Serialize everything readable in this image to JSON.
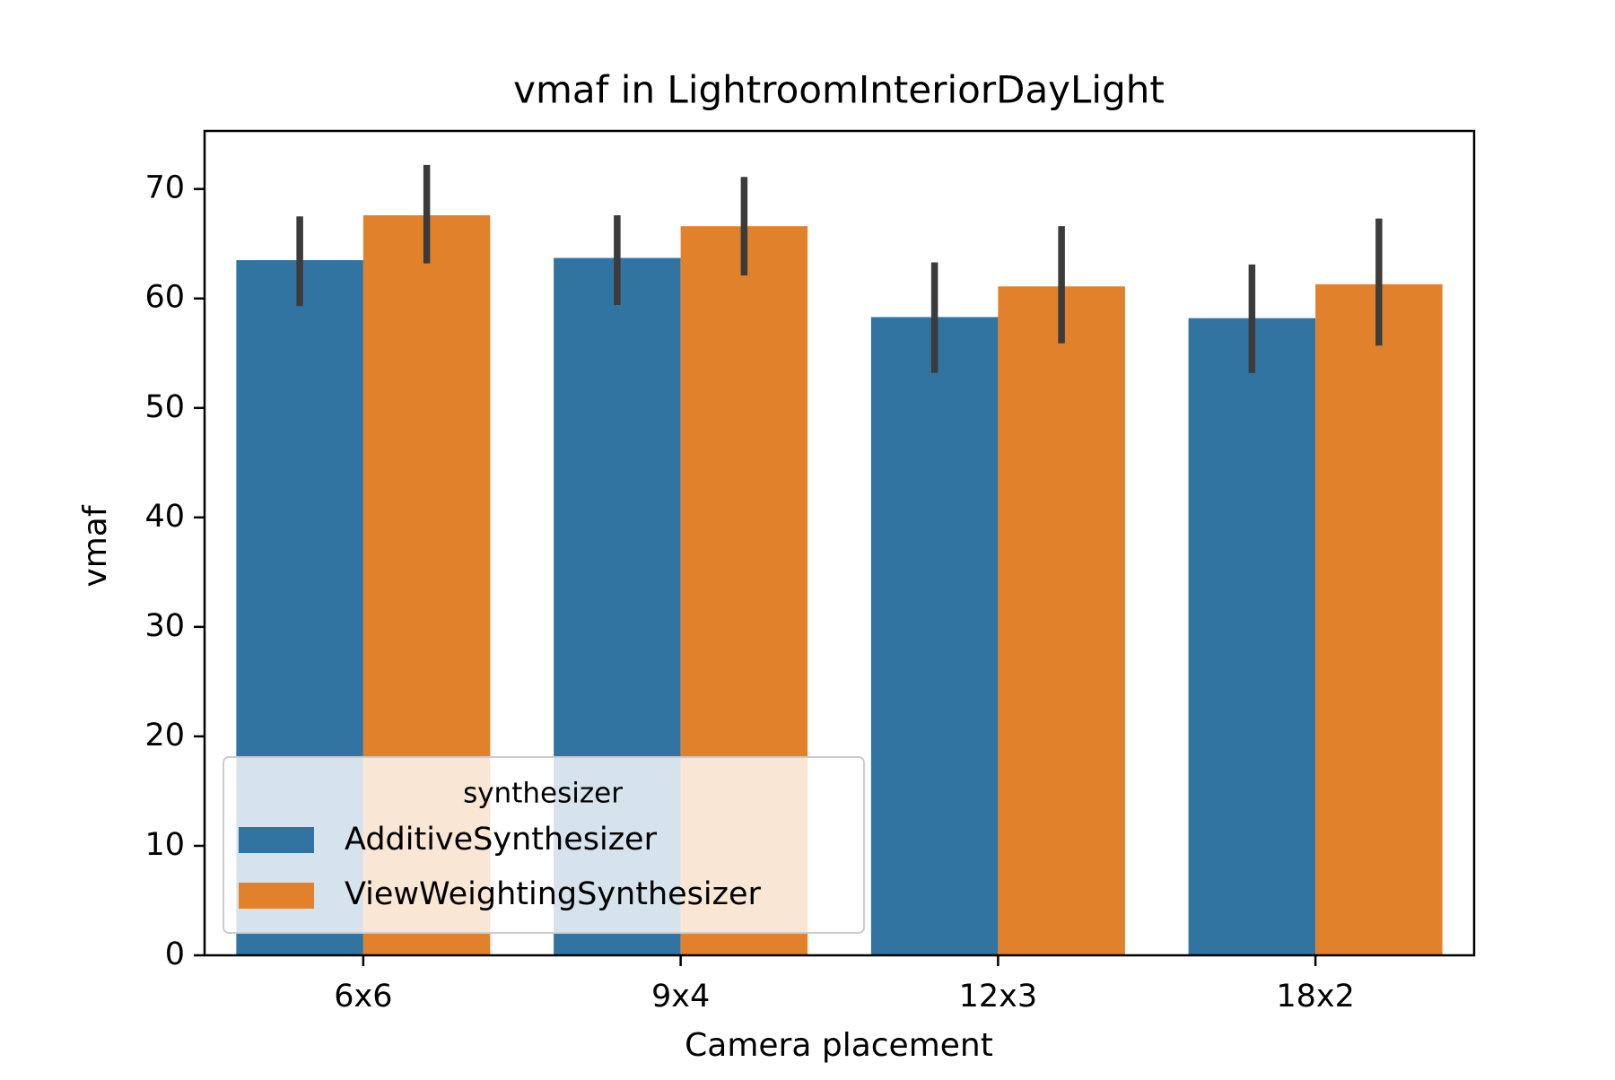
{
  "chart_data": {
    "type": "bar",
    "title": "vmaf in LightroomInteriorDayLight",
    "xlabel": "Camera placement",
    "ylabel": "vmaf",
    "categories": [
      "6x6",
      "9x4",
      "12x3",
      "18x2"
    ],
    "ylim": [
      0,
      75.3
    ],
    "yticks": [
      0,
      10,
      20,
      30,
      40,
      50,
      60,
      70
    ],
    "grid": false,
    "legend": {
      "title": "synthesizer",
      "placement": "lower-left"
    },
    "series": [
      {
        "name": "AdditiveSynthesizer",
        "color": "#3274a1",
        "values": [
          63.5,
          63.7,
          58.3,
          58.2
        ],
        "ci_low": [
          59.3,
          59.4,
          53.2,
          53.2
        ],
        "ci_high": [
          67.5,
          67.6,
          63.3,
          63.1
        ]
      },
      {
        "name": "ViewWeightingSynthesizer",
        "color": "#e1812c",
        "values": [
          67.6,
          66.6,
          61.1,
          61.3
        ],
        "ci_low": [
          63.2,
          62.1,
          55.9,
          55.7
        ],
        "ci_high": [
          72.2,
          71.1,
          66.6,
          67.3
        ]
      }
    ],
    "errorbar_color": "#3b3b3b"
  }
}
